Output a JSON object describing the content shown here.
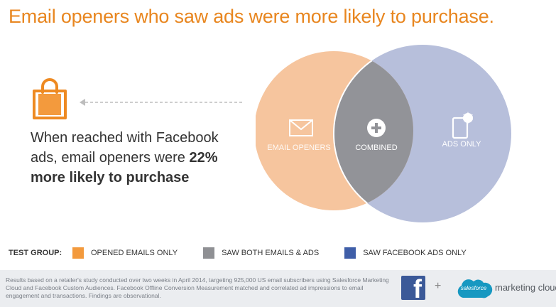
{
  "headline": "Email openers who saw ads were more likely to purchase.",
  "claim": {
    "lead": "When reached with Facebook ads, email openers were ",
    "emphasis": "22% more likely to purchase"
  },
  "venn": {
    "left_label": "EMAIL OPENERS",
    "center_label": "COMBINED",
    "right_label": "ADS ONLY",
    "colors": {
      "left": "#f6c59e",
      "center": "#929398",
      "right": "#b7bfdb"
    }
  },
  "icons": {
    "bag": "shopping-bag-icon",
    "email": "envelope-icon",
    "combined": "plus-circle-icon",
    "ads": "mobile-ad-icon"
  },
  "legend": {
    "title": "TEST GROUP:",
    "items": [
      {
        "label": "OPENED EMAILS ONLY",
        "color": "#f39a3d"
      },
      {
        "label": "SAW BOTH EMAILS & ADS",
        "color": "#8f9094"
      },
      {
        "label": "SAW FACEBOOK ADS ONLY",
        "color": "#3f5ea8"
      }
    ]
  },
  "footer": {
    "note": "Results based on a retailer's study conducted over two weeks in April 2014, targeting 925,000 US email subscribers using Salesforce Marketing Cloud and Facebook Custom Audiences. Facebook Offline Conversion Measurement matched and correlated ad impressions to email engagement and transactions. Findings are observational.",
    "fb_letter": "f",
    "plus": "+",
    "sf_logo_text": "salesforce",
    "mc_text": "marketing cloud"
  }
}
